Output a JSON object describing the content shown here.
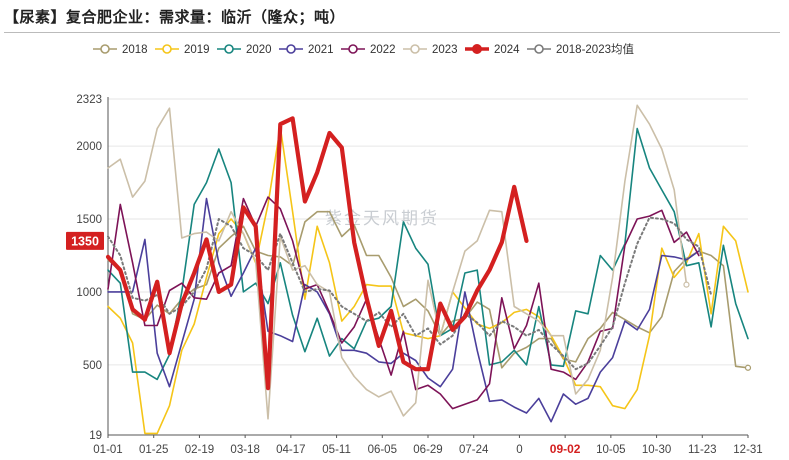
{
  "title": "【尿素】复合肥企业：需求量：临沂（隆众；吨）",
  "watermark": "紫金天风期货",
  "chart_data": {
    "type": "line",
    "title": "【尿素】复合肥企业：需求量：临沂（隆众；吨）",
    "xlabel": "",
    "ylabel": "",
    "x_ticks": [
      "01-01",
      "01-25",
      "02-19",
      "03-18",
      "04-17",
      "05-11",
      "06-05",
      "06-29",
      "07-24",
      "0",
      "09-02",
      "10-05",
      "10-30",
      "11-23",
      "12-31"
    ],
    "y_ticks": [
      19,
      500,
      1000,
      1500,
      2000,
      2323
    ],
    "ylim": [
      19,
      2323
    ],
    "n_points": 53,
    "highlight": {
      "x_label": "09-02",
      "value_label": "1350",
      "value": 1350,
      "color": "#d42020"
    },
    "series": [
      {
        "name": "2018",
        "color": "#a89c6e",
        "width": 1.6,
        "dash": "",
        "values": [
          1220,
          1150,
          850,
          810,
          910,
          850,
          950,
          1020,
          1050,
          1300,
          1380,
          1450,
          1280,
          1250,
          1240,
          1180,
          1480,
          1550,
          1550,
          1380,
          1460,
          1250,
          1250,
          1100,
          900,
          950,
          870,
          700,
          800,
          820,
          930,
          880,
          480,
          580,
          620,
          680,
          680,
          540,
          520,
          680,
          750,
          860,
          810,
          760,
          720,
          830,
          1140,
          1230,
          1280,
          1250,
          1180,
          490,
          480
        ]
      },
      {
        "name": "2019",
        "color": "#f5c518",
        "width": 1.6,
        "dash": "",
        "values": [
          900,
          820,
          650,
          30,
          30,
          220,
          600,
          780,
          1100,
          1400,
          1500,
          1400,
          1200,
          1600,
          2130,
          1550,
          950,
          1450,
          1200,
          800,
          900,
          1050,
          1040,
          1040,
          720,
          700,
          680,
          700,
          1000,
          890,
          780,
          750,
          790,
          860,
          880,
          830,
          700,
          550,
          360,
          360,
          350,
          220,
          200,
          330,
          700,
          1300,
          1100,
          1200,
          1400,
          850,
          1450,
          1350,
          1000
        ]
      },
      {
        "name": "2020",
        "color": "#17857f",
        "width": 1.6,
        "dash": "",
        "values": [
          1150,
          1060,
          450,
          450,
          400,
          570,
          1000,
          1600,
          1750,
          1980,
          1750,
          1000,
          1060,
          920,
          1200,
          840,
          590,
          820,
          560,
          680,
          610,
          800,
          820,
          900,
          1480,
          1300,
          1190,
          700,
          750,
          1130,
          1150,
          500,
          520,
          600,
          500,
          900,
          500,
          490,
          870,
          850,
          1250,
          1150,
          1330,
          2120,
          1850,
          1700,
          1550,
          1180,
          1200,
          760,
          1320,
          920,
          680
        ]
      },
      {
        "name": "2021",
        "color": "#4b3f9b",
        "width": 1.6,
        "dash": "",
        "values": [
          1000,
          1000,
          1000,
          1360,
          580,
          350,
          650,
          950,
          1640,
          1200,
          970,
          1130,
          1300,
          730,
          700,
          660,
          1050,
          1000,
          850,
          600,
          600,
          580,
          520,
          510,
          580,
          530,
          410,
          350,
          470,
          1000,
          600,
          250,
          260,
          210,
          170,
          270,
          110,
          300,
          230,
          270,
          450,
          550,
          800,
          740,
          880,
          1250,
          1240,
          1220,
          1280
        ]
      },
      {
        "name": "2022",
        "color": "#7d1357",
        "width": 1.6,
        "dash": "",
        "values": [
          1020,
          1600,
          1200,
          770,
          770,
          1010,
          1060,
          960,
          950,
          1130,
          1180,
          1640,
          1450,
          1650,
          1570,
          1350,
          1020,
          1050,
          860,
          650,
          760,
          950,
          680,
          430,
          730,
          330,
          360,
          300,
          200,
          230,
          260,
          370,
          960,
          610,
          770,
          1060,
          470,
          450,
          400,
          520,
          730,
          750,
          1320,
          1500,
          1520,
          1560,
          1340,
          1410,
          1250
        ]
      },
      {
        "name": "2023",
        "color": "#cbbfa8",
        "width": 1.6,
        "dash": "",
        "values": [
          1850,
          1910,
          1650,
          1760,
          2120,
          2260,
          1370,
          1400,
          1410,
          1350,
          1550,
          1400,
          1210,
          130,
          1380,
          1150,
          1180,
          1050,
          1000,
          550,
          420,
          330,
          280,
          320,
          150,
          240,
          1080,
          700,
          1000,
          1280,
          1350,
          1560,
          1550,
          900,
          850,
          800,
          700,
          700,
          300,
          400,
          600,
          1100,
          1760,
          2280,
          2150,
          1980,
          1700,
          1050
        ]
      },
      {
        "name": "2024",
        "color": "#d42020",
        "width": 4.2,
        "dash": "",
        "values": [
          1240,
          1150,
          880,
          810,
          1070,
          580,
          920,
          1130,
          1360,
          1000,
          1050,
          1580,
          1450,
          340,
          2150,
          2190,
          1620,
          1820,
          2090,
          1990,
          1340,
          960,
          630,
          870,
          520,
          470,
          470,
          920,
          740,
          830,
          1010,
          1150,
          1340,
          1720,
          1350
        ]
      },
      {
        "name": "2018-2023均值",
        "color": "#7a7a7a",
        "width": 2,
        "dash": "2,3",
        "values": [
          1380,
          1250,
          960,
          940,
          980,
          850,
          900,
          1000,
          1160,
          1500,
          1450,
          1300,
          1250,
          1150,
          1400,
          1200,
          1000,
          1020,
          1010,
          900,
          850,
          800,
          860,
          760,
          850,
          700,
          750,
          640,
          700,
          850,
          790,
          700,
          800,
          760,
          700,
          740,
          640,
          560,
          470,
          510,
          630,
          760,
          1060,
          1330,
          1510,
          1500,
          1470,
          1360,
          1310,
          980
        ]
      }
    ]
  }
}
